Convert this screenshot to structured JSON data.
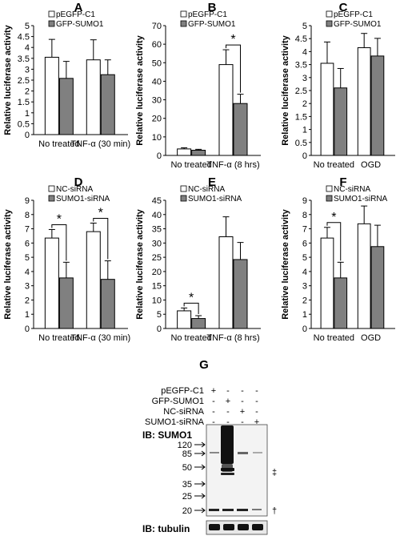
{
  "chart_data": [
    {
      "type": "bar",
      "panel": "A",
      "ylabel": "Relative luciferase activity",
      "ylim": [
        0,
        5
      ],
      "yticks": [
        0,
        0.5,
        1,
        1.5,
        2,
        2.5,
        3,
        3.5,
        4,
        4.5,
        5
      ],
      "yticklabels": [
        "0",
        "0.5",
        "1",
        "1.5",
        "2",
        "2.5",
        "3",
        "3.5",
        "4",
        "4.5",
        "5"
      ],
      "categories": [
        "No treated",
        "TNF-α (30 min)"
      ],
      "series": [
        {
          "name": "pEGFP-C1",
          "values": [
            3.55,
            3.43
          ],
          "errors": [
            0.82,
            0.92
          ],
          "color": "#ffffff"
        },
        {
          "name": "GFP-SUMO1",
          "values": [
            2.58,
            2.75
          ],
          "errors": [
            0.78,
            0.68
          ],
          "color": "#808080"
        }
      ],
      "significance": []
    },
    {
      "type": "bar",
      "panel": "B",
      "ylabel": "Relative luciferase activity",
      "ylim": [
        0,
        70
      ],
      "yticks": [
        0,
        10,
        20,
        30,
        40,
        50,
        60,
        70
      ],
      "yticklabels": [
        "0",
        "10",
        "20",
        "30",
        "40",
        "50",
        "60",
        "70"
      ],
      "categories": [
        "No treated",
        "TNF-α (8 hrs)"
      ],
      "series": [
        {
          "name": "pEGFP-C1",
          "values": [
            3.5,
            49
          ],
          "errors": [
            0.6,
            8
          ],
          "color": "#ffffff"
        },
        {
          "name": "GFP-SUMO1",
          "values": [
            2.8,
            28
          ],
          "errors": [
            0.5,
            5
          ],
          "color": "#808080"
        }
      ],
      "significance": [
        {
          "category": 1,
          "label": "*"
        }
      ]
    },
    {
      "type": "bar",
      "panel": "C",
      "ylabel": "Relative luciferase activity",
      "ylim": [
        0,
        5
      ],
      "yticks": [
        0,
        0.5,
        1,
        1.5,
        2,
        2.5,
        3,
        3.5,
        4,
        4.5,
        5
      ],
      "yticklabels": [
        "0",
        "0.5",
        "1",
        "1.5",
        "2",
        "2.5",
        "3",
        "3.5",
        "4",
        "4.5",
        "5"
      ],
      "categories": [
        "No treated",
        "OGD"
      ],
      "series": [
        {
          "name": "pEGFP-C1",
          "values": [
            3.55,
            4.15
          ],
          "errors": [
            0.82,
            0.55
          ],
          "color": "#ffffff"
        },
        {
          "name": "GFP-SUMO1",
          "values": [
            2.6,
            3.83
          ],
          "errors": [
            0.75,
            0.68
          ],
          "color": "#808080"
        }
      ],
      "significance": []
    },
    {
      "type": "bar",
      "panel": "D",
      "ylabel": "Relative luciferase activity",
      "ylim": [
        0,
        9
      ],
      "yticks": [
        0,
        1,
        2,
        3,
        4,
        5,
        6,
        7,
        8,
        9
      ],
      "yticklabels": [
        "0",
        "1",
        "2",
        "3",
        "4",
        "5",
        "6",
        "7",
        "8",
        "9"
      ],
      "categories": [
        "No treated",
        "TNF-α (30 min)"
      ],
      "series": [
        {
          "name": "NC-siRNA",
          "values": [
            6.35,
            6.8
          ],
          "errors": [
            0.6,
            0.6
          ],
          "color": "#ffffff"
        },
        {
          "name": "SUMO1-siRNA",
          "values": [
            3.55,
            3.45
          ],
          "errors": [
            1.1,
            1.3
          ],
          "color": "#808080"
        }
      ],
      "significance": [
        {
          "category": 0,
          "label": "*"
        },
        {
          "category": 1,
          "label": "*"
        }
      ]
    },
    {
      "type": "bar",
      "panel": "E",
      "ylabel": "Relative luciferase activity",
      "ylim": [
        0,
        45
      ],
      "yticks": [
        0,
        5,
        10,
        15,
        20,
        25,
        30,
        35,
        40,
        45
      ],
      "yticklabels": [
        "0",
        "5",
        "10",
        "15",
        "20",
        "25",
        "30",
        "35",
        "40",
        "45"
      ],
      "categories": [
        "No treated",
        "TNF-α (8 hrs)"
      ],
      "series": [
        {
          "name": "NC-siRNA",
          "values": [
            6.2,
            32.2
          ],
          "errors": [
            1.0,
            7.0
          ],
          "color": "#ffffff"
        },
        {
          "name": "SUMO1-siRNA",
          "values": [
            3.5,
            24.2
          ],
          "errors": [
            1.0,
            6.0
          ],
          "color": "#808080"
        }
      ],
      "significance": [
        {
          "category": 0,
          "label": "*"
        }
      ]
    },
    {
      "type": "bar",
      "panel": "F",
      "ylabel": "Relative luciferase activity",
      "ylim": [
        0,
        9
      ],
      "yticks": [
        0,
        1,
        2,
        3,
        4,
        5,
        6,
        7,
        8,
        9
      ],
      "yticklabels": [
        "0",
        "1",
        "2",
        "3",
        "4",
        "5",
        "6",
        "7",
        "8",
        "9"
      ],
      "categories": [
        "No treated",
        "OGD"
      ],
      "series": [
        {
          "name": "NC-siRNA",
          "values": [
            6.35,
            7.35
          ],
          "errors": [
            0.75,
            1.25
          ],
          "color": "#ffffff"
        },
        {
          "name": "SUMO1-siRNA",
          "values": [
            3.55,
            5.75
          ],
          "errors": [
            1.1,
            1.5
          ],
          "color": "#808080"
        }
      ],
      "significance": [
        {
          "category": 0,
          "label": "*"
        }
      ]
    }
  ],
  "blot": {
    "panel": "G",
    "conditions": [
      {
        "label": "pEGFP-C1",
        "marks": [
          "+",
          "-",
          "-",
          "-"
        ]
      },
      {
        "label": "GFP-SUMO1",
        "marks": [
          "-",
          "+",
          "-",
          "-"
        ]
      },
      {
        "label": "NC-siRNA",
        "marks": [
          "-",
          "-",
          "+",
          "-"
        ]
      },
      {
        "label": "SUMO1-siRNA",
        "marks": [
          "-",
          "-",
          "-",
          "+"
        ]
      }
    ],
    "sumo1_label": "IB: SUMO1",
    "tubulin_label": "IB: tubulin",
    "mw_markers": [
      "120",
      "85",
      "50",
      "35",
      "25",
      "20"
    ],
    "annotations": {
      "double_dagger": "‡",
      "dagger": "†"
    }
  }
}
